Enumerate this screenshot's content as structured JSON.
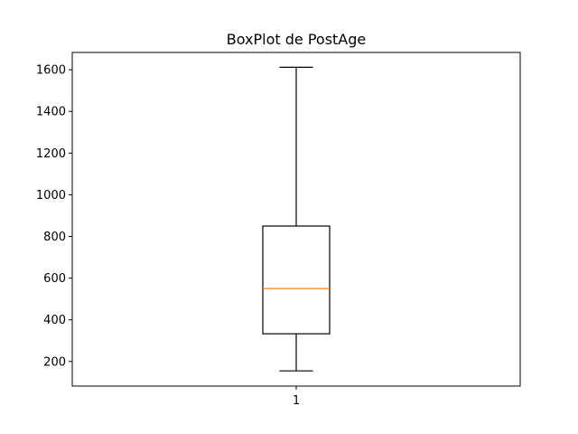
{
  "chart_data": {
    "type": "box",
    "title": "BoxPlot de PostAge",
    "xlabel": "",
    "ylabel": "",
    "categories": [
      "1"
    ],
    "boxes": [
      {
        "label": "1",
        "whisker_low": 155,
        "q1": 333,
        "median": 550,
        "q3": 850,
        "whisker_high": 1612
      }
    ],
    "ylim": [
      82,
      1683
    ],
    "yticks": [
      200,
      400,
      600,
      800,
      1000,
      1200,
      1400,
      1600
    ],
    "grid": false,
    "colors": {
      "box": "#000000",
      "median": "#ff7f0e"
    }
  }
}
